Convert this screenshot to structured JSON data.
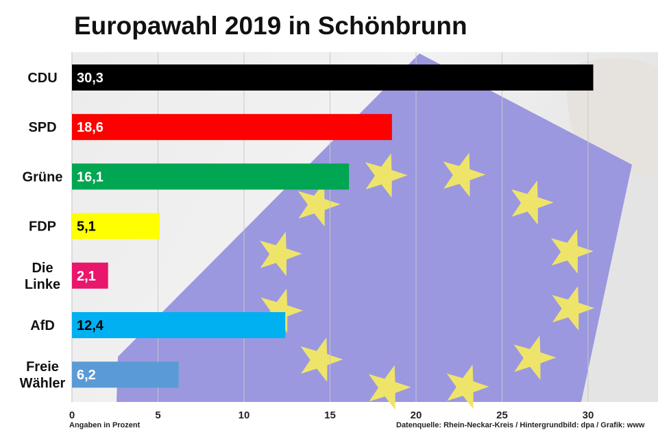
{
  "chart_data": {
    "type": "bar",
    "orientation": "horizontal",
    "title": "Europawahl 2019 in Schönbrunn",
    "categories": [
      [
        "CDU"
      ],
      [
        "SPD"
      ],
      [
        "Grüne"
      ],
      [
        "FDP"
      ],
      [
        "Die",
        "Linke"
      ],
      [
        "AfD"
      ],
      [
        "Freie",
        "Wähler"
      ]
    ],
    "values": [
      30.3,
      18.6,
      16.1,
      5.1,
      2.1,
      12.4,
      6.2
    ],
    "value_labels": [
      "30,3",
      "18,6",
      "16,1",
      "5,1",
      "2,1",
      "12,4",
      "6,2"
    ],
    "colors": [
      "#000000",
      "#fe0000",
      "#00a651",
      "#ffff00",
      "#e8176c",
      "#00b0f0",
      "#5b9bd5"
    ],
    "label_colors": [
      "#ffffff",
      "#ffffff",
      "#ffffff",
      "#000000",
      "#ffffff",
      "#000000",
      "#ffffff"
    ],
    "xlim": [
      0,
      35
    ],
    "xticks": [
      0,
      5,
      10,
      15,
      20,
      25,
      30
    ],
    "grid": true,
    "xlabel": "Angaben in Prozent",
    "source_note": "Datenquelle: Rhein-Neckar-Kreis  / Hintergrundbild: dpa / Grafik: www"
  },
  "background": {
    "icon": "eu-flag-ballot-icon",
    "flag_color": "#9b98e0",
    "star_color": "#efe46a"
  }
}
